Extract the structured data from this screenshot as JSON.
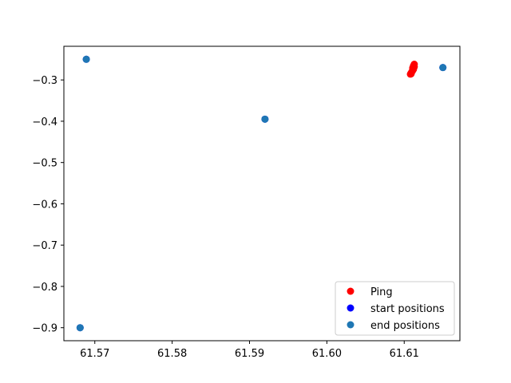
{
  "chart_data": {
    "type": "scatter",
    "title": "",
    "xlabel": "",
    "ylabel": "",
    "xlim": [
      61.566,
      61.6172
    ],
    "ylim": [
      -0.9315,
      -0.2185
    ],
    "xticks": [
      61.57,
      61.58,
      61.59,
      61.6,
      61.61
    ],
    "xtick_labels": [
      "61.57",
      "61.58",
      "61.59",
      "61.60",
      "61.61"
    ],
    "yticks": [
      -0.3,
      -0.4,
      -0.5,
      -0.6,
      -0.7,
      -0.8,
      -0.9
    ],
    "ytick_labels": [
      "−0.3",
      "−0.4",
      "−0.5",
      "−0.6",
      "−0.7",
      "−0.8",
      "−0.9"
    ],
    "grid": false,
    "legend_position": "lower-right",
    "series": [
      {
        "name": "Ping",
        "color": "#ff0000",
        "x": [
          61.6108,
          61.6109,
          61.611,
          61.6111,
          61.6112,
          61.6113,
          61.6111,
          61.6112,
          61.6113,
          61.6109
        ],
        "y": [
          -0.286,
          -0.283,
          -0.28,
          -0.277,
          -0.274,
          -0.268,
          -0.271,
          -0.266,
          -0.262,
          -0.285
        ]
      },
      {
        "name": "start positions",
        "color": "#0000ff",
        "x": [
          61.5689,
          61.592,
          61.615,
          61.5681
        ],
        "y": [
          -0.25,
          -0.395,
          -0.27,
          -0.9
        ]
      },
      {
        "name": "end positions",
        "color": "#1f77b4",
        "x": [
          61.5689,
          61.592,
          61.615,
          61.5681
        ],
        "y": [
          -0.25,
          -0.395,
          -0.27,
          -0.9
        ]
      }
    ]
  }
}
